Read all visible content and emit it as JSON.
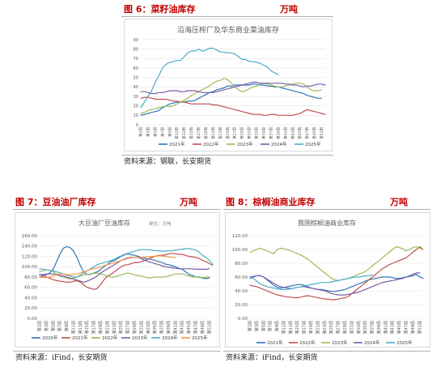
{
  "figures": [
    {
      "caption": "图 6：菜籽油库存",
      "unit": "万吨",
      "source": "资料来源：钢联，长安期货"
    },
    {
      "caption": "图 7：豆油油厂库存",
      "unit": "万吨",
      "source": "资料来源：iFind，长安期货"
    },
    {
      "caption": "图 8：棕榈油商业库存",
      "unit": "万吨",
      "source": "资料来源：iFind，长安期货"
    }
  ],
  "chart_data": [
    {
      "type": "line",
      "title": "沿海压榨厂及华东商业菜油库存",
      "x_ticks": [
        "第1周",
        "第3周",
        "第5周",
        "第7周",
        "第9周",
        "第11周",
        "第13周",
        "第15周",
        "第17周",
        "第19周",
        "第21周",
        "第23周",
        "第25周",
        "第27周",
        "第29周",
        "第31周",
        "第33周",
        "第35周",
        "第37周",
        "第39周",
        "第41周",
        "第43周",
        "第45周",
        "第47周",
        "第49周",
        "第51周"
      ],
      "ylim": [
        0,
        90
      ],
      "y_ticks": [
        "0",
        "10",
        "20",
        "30",
        "40",
        "50",
        "60",
        "70",
        "80",
        "90"
      ],
      "grid": true,
      "legend": "bottom",
      "series": [
        {
          "name": "2021年",
          "color": "#2e75b6",
          "values": [
            10,
            11,
            12,
            13,
            14,
            15,
            18,
            20,
            22,
            23,
            24,
            24,
            24,
            25,
            25,
            26,
            28,
            30,
            32,
            34,
            35,
            37,
            38,
            39,
            41,
            41,
            42,
            42,
            42,
            42,
            42,
            43,
            43,
            42,
            42,
            41,
            41,
            40,
            40,
            39,
            38,
            37,
            36,
            35,
            34,
            33,
            31,
            30,
            29,
            28,
            28
          ]
        },
        {
          "name": "2022年",
          "color": "#c0504d",
          "values": [
            28,
            29,
            29,
            28,
            27,
            27,
            27,
            27,
            26,
            25,
            25,
            24,
            24,
            23,
            22,
            22,
            22,
            22,
            22,
            22,
            21,
            21,
            20,
            19,
            18,
            17,
            16,
            15,
            14,
            13,
            12,
            11,
            11,
            11,
            10,
            10,
            11,
            11,
            10,
            10,
            10,
            10,
            10,
            11,
            12,
            14,
            16,
            15,
            14,
            13,
            12,
            11
          ]
        },
        {
          "name": "2023年",
          "color": "#9bbb59",
          "values": [
            12,
            13,
            15,
            16,
            17,
            18,
            19,
            20,
            19,
            20,
            22,
            24,
            26,
            28,
            31,
            33,
            35,
            37,
            39,
            41,
            44,
            46,
            47,
            49,
            48,
            44,
            40,
            37,
            35,
            36,
            38,
            40,
            41,
            43,
            44,
            43,
            42,
            41,
            40,
            40,
            41,
            42,
            43,
            44,
            44,
            43,
            40,
            37,
            36,
            36,
            37
          ]
        },
        {
          "name": "2024年",
          "color": "#7c5ba8",
          "values": [
            35,
            35,
            34,
            33,
            33,
            34,
            34,
            35,
            36,
            36,
            36,
            35,
            35,
            36,
            36,
            36,
            35,
            34,
            34,
            34,
            34,
            35,
            36,
            37,
            38,
            39,
            40,
            41,
            42,
            43,
            44,
            45,
            45,
            44,
            44,
            44,
            44,
            44,
            44,
            44,
            43,
            43,
            42,
            42,
            41,
            40,
            41,
            41,
            42,
            43,
            43,
            42
          ]
        },
        {
          "name": "2025年",
          "color": "#4bacc6",
          "values": [
            18,
            24,
            30,
            36,
            45,
            52,
            60,
            64,
            66,
            67,
            68,
            68,
            72,
            76,
            78,
            78,
            80,
            78,
            79,
            81,
            81,
            79,
            77,
            77,
            76,
            76,
            75,
            72,
            69,
            69,
            67,
            67,
            66,
            65,
            63,
            61,
            57,
            55,
            53
          ]
        }
      ]
    },
    {
      "type": "line",
      "title": "大豆油厂豆油库存",
      "unit_note": "单位：万吨",
      "ylim": [
        0,
        160
      ],
      "y_ticks": [
        "0.00",
        "20.00",
        "40.00",
        "60.00",
        "80.00",
        "100.00",
        "120.00",
        "140.00",
        "160.00"
      ],
      "grid": true,
      "legend": "bottom",
      "series": [
        {
          "name": "2020年",
          "color": "#2e75b6",
          "values": [
            80,
            82,
            85,
            88,
            95,
            110,
            125,
            136,
            139,
            137,
            130,
            118,
            102,
            90,
            85,
            85,
            88,
            90,
            95,
            100,
            105,
            110,
            112,
            116,
            120,
            123,
            125,
            123,
            122,
            120,
            118,
            116,
            115,
            114,
            112,
            110,
            108,
            105,
            104,
            102,
            100,
            97,
            95,
            90,
            85,
            83,
            80,
            80,
            78,
            77,
            78
          ]
        },
        {
          "name": "2021年",
          "color": "#c0504d",
          "values": [
            85,
            83,
            80,
            78,
            75,
            73,
            72,
            71,
            70,
            70,
            72,
            73,
            70,
            65,
            60,
            58,
            56,
            58,
            66,
            75,
            82,
            85,
            90,
            95,
            100,
            103,
            104,
            106,
            108,
            108,
            110,
            112,
            115,
            118,
            120,
            122,
            122,
            123,
            125,
            126,
            125,
            124,
            124,
            122,
            120,
            119,
            118,
            116,
            112,
            110,
            106,
            103
          ]
        },
        {
          "name": "2022年",
          "color": "#9bbb59",
          "values": [
            90,
            92,
            94,
            93,
            90,
            86,
            82,
            80,
            78,
            76,
            78,
            80,
            82,
            84,
            85,
            86,
            87,
            88,
            86,
            84,
            82,
            80,
            80,
            82,
            84,
            86,
            88,
            86,
            84,
            83,
            82,
            80,
            78,
            79,
            80,
            80,
            80,
            80,
            82,
            84,
            86,
            86,
            86,
            84,
            82,
            80,
            80,
            79,
            79,
            80,
            80
          ]
        },
        {
          "name": "2023年",
          "color": "#7c5ba8",
          "values": [
            84,
            85,
            86,
            86,
            86,
            84,
            83,
            82,
            80,
            78,
            76,
            74,
            72,
            70,
            72,
            75,
            78,
            82,
            88,
            92,
            96,
            100,
            104,
            108,
            112,
            115,
            117,
            118,
            118,
            118,
            115,
            112,
            110,
            108,
            106,
            104,
            102,
            100,
            99,
            98,
            97,
            96,
            96,
            96,
            96,
            96,
            95,
            95,
            95,
            95,
            96
          ]
        },
        {
          "name": "2024年",
          "color": "#4bacc6",
          "values": [
            96,
            95,
            94,
            93,
            92,
            90,
            88,
            86,
            84,
            82,
            80,
            80,
            84,
            88,
            92,
            96,
            100,
            104,
            106,
            108,
            110,
            112,
            114,
            118,
            121,
            124,
            126,
            128,
            130,
            132,
            133,
            133,
            133,
            132,
            131,
            131,
            130,
            130,
            131,
            131,
            132,
            133,
            134,
            135,
            135,
            134,
            132,
            128,
            122,
            118,
            112,
            105
          ]
        },
        {
          "name": "2025年",
          "color": "#f79646",
          "values": [
            80,
            79,
            79,
            80,
            82,
            85,
            86,
            86,
            85,
            84,
            85,
            86,
            88,
            90,
            92,
            95,
            96,
            98,
            100,
            102,
            104,
            106,
            108,
            110,
            112,
            114,
            116,
            117,
            118,
            118,
            118,
            119,
            119,
            120,
            120,
            121,
            121,
            120,
            119,
            118,
            118
          ]
        }
      ]
    },
    {
      "type": "line",
      "title": "我国棕榈油商业库存",
      "ylim": [
        0,
        120
      ],
      "y_ticks": [
        "0.00",
        "20.00",
        "40.00",
        "60.00",
        "80.00",
        "100.00",
        "120.00"
      ],
      "grid": true,
      "legend": "bottom",
      "series": [
        {
          "name": "2021年",
          "color": "#2e75b6",
          "values": [
            60,
            61,
            62,
            62,
            60,
            56,
            52,
            48,
            45,
            44,
            45,
            46,
            47,
            48,
            49,
            49,
            48,
            46,
            44,
            43,
            42,
            42,
            41,
            40,
            39,
            39,
            40,
            41,
            42,
            44,
            46,
            48,
            50,
            52,
            54,
            56,
            57,
            58,
            59,
            60,
            60,
            60,
            59,
            58,
            58,
            59,
            60,
            61,
            62,
            64,
            60,
            58
          ]
        },
        {
          "name": "2022年",
          "color": "#c0504d",
          "values": [
            48,
            47,
            46,
            44,
            42,
            40,
            38,
            36,
            34,
            33,
            32,
            31,
            31,
            30,
            30,
            31,
            32,
            33,
            32,
            31,
            30,
            29,
            28,
            28,
            27,
            27,
            28,
            29,
            30,
            32,
            36,
            40,
            44,
            48,
            52,
            56,
            60,
            64,
            68,
            72,
            75,
            78,
            80,
            82,
            84,
            86,
            88,
            92,
            96,
            100,
            104,
            100
          ]
        },
        {
          "name": "2023年",
          "color": "#9bbb59",
          "values": [
            96,
            98,
            100,
            102,
            100,
            98,
            96,
            94,
            100,
            102,
            101,
            100,
            98,
            96,
            94,
            92,
            89,
            86,
            82,
            78,
            74,
            70,
            66,
            62,
            58,
            56,
            55,
            56,
            57,
            58,
            60,
            62,
            64,
            66,
            68,
            72,
            76,
            80,
            84,
            88,
            92,
            96,
            100,
            104,
            103,
            101,
            98,
            100,
            103,
            104,
            102,
            100
          ]
        },
        {
          "name": "2024年",
          "color": "#7c5ba8",
          "values": [
            58,
            60,
            62,
            62,
            60,
            57,
            54,
            51,
            48,
            46,
            45,
            44,
            43,
            44,
            45,
            46,
            46,
            45,
            44,
            43,
            42,
            41,
            40,
            38,
            36,
            35,
            34,
            34,
            34,
            35,
            36,
            37,
            38,
            40,
            42,
            44,
            46,
            48,
            50,
            52,
            53,
            54,
            55,
            56,
            57,
            58,
            60,
            62,
            64,
            66,
            66
          ]
        },
        {
          "name": "2025年",
          "color": "#4bacc6",
          "values": [
            60,
            58,
            54,
            50,
            48,
            46,
            45,
            44,
            43,
            42,
            42,
            42,
            43,
            44,
            45,
            46,
            47,
            48,
            49,
            50,
            51,
            52,
            52,
            52,
            53,
            54,
            55,
            56,
            57,
            58,
            59,
            60,
            60,
            61,
            62,
            62,
            63
          ]
        }
      ]
    }
  ]
}
